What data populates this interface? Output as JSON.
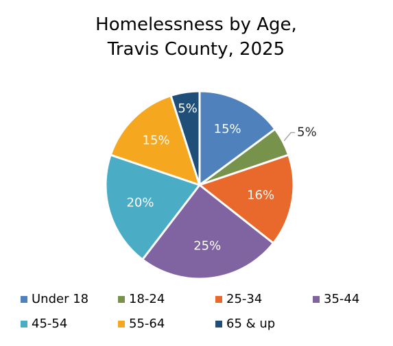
{
  "chart_data": {
    "type": "pie",
    "title": [
      "Homelessness by Age,",
      "Travis County, 2025"
    ],
    "categories": [
      "Under 18",
      "18-24",
      "25-34",
      "35-44",
      "45-54",
      "55-64",
      "65 & up"
    ],
    "values": [
      15,
      5,
      16,
      25,
      20,
      15,
      5
    ],
    "data_labels": [
      "15%",
      "5%",
      "16%",
      "25%",
      "20%",
      "15%",
      "5%"
    ],
    "colors": [
      "#4F81BD",
      "#77934B",
      "#E8692B",
      "#8064A2",
      "#4BACC6",
      "#F5A81F",
      "#1F4E79"
    ],
    "legend_position": "bottom"
  }
}
